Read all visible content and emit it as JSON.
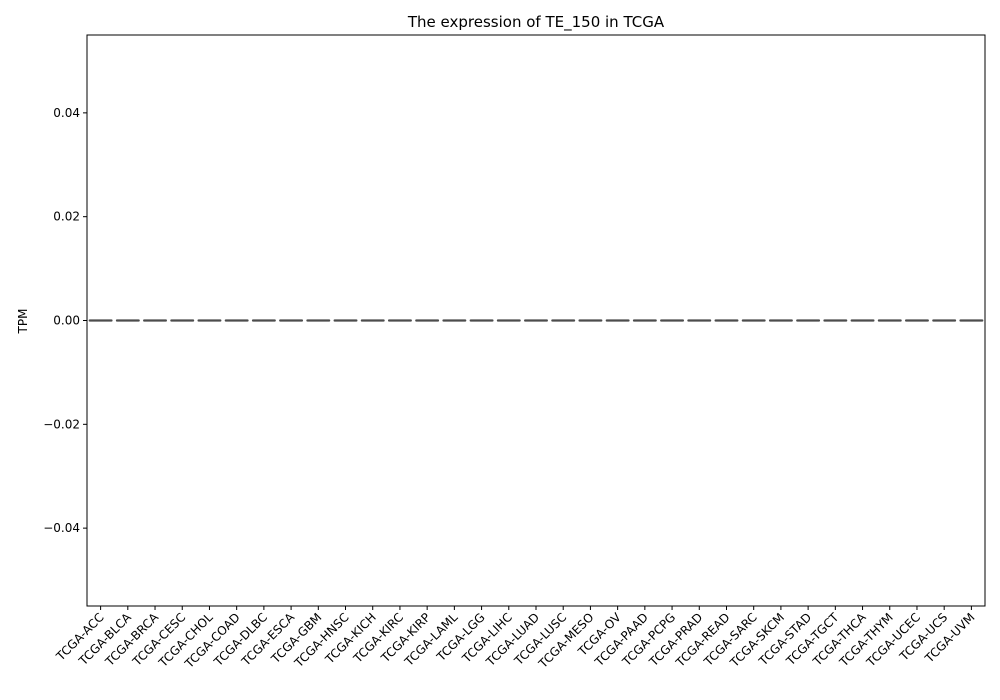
{
  "chart_data": {
    "type": "box",
    "title": "The expression of TE_150 in TCGA",
    "xlabel": "",
    "ylabel": "TPM",
    "ylim": [
      -0.055,
      0.055
    ],
    "yticks": [
      "0.04",
      "0.02",
      "0.00",
      "−0.02",
      "−0.04"
    ],
    "ytick_values": [
      0.04,
      0.02,
      0.0,
      -0.02,
      -0.04
    ],
    "grid": false,
    "legend": "none",
    "box_color": "#4c4c4c",
    "categories": [
      "TCGA-ACC",
      "TCGA-BLCA",
      "TCGA-BRCA",
      "TCGA-CESC",
      "TCGA-CHOL",
      "TCGA-COAD",
      "TCGA-DLBC",
      "TCGA-ESCA",
      "TCGA-GBM",
      "TCGA-HNSC",
      "TCGA-KICH",
      "TCGA-KIRC",
      "TCGA-KIRP",
      "TCGA-LAML",
      "TCGA-LGG",
      "TCGA-LIHC",
      "TCGA-LUAD",
      "TCGA-LUSC",
      "TCGA-MESO",
      "TCGA-OV",
      "TCGA-PAAD",
      "TCGA-PCPG",
      "TCGA-PRAD",
      "TCGA-READ",
      "TCGA-SARC",
      "TCGA-SKCM",
      "TCGA-STAD",
      "TCGA-TGCT",
      "TCGA-THCA",
      "TCGA-THYM",
      "TCGA-UCEC",
      "TCGA-UCS",
      "TCGA-UVM"
    ],
    "medians": [
      0,
      0,
      0,
      0,
      0,
      0,
      0,
      0,
      0,
      0,
      0,
      0,
      0,
      0,
      0,
      0,
      0,
      0,
      0,
      0,
      0,
      0,
      0,
      0,
      0,
      0,
      0,
      0,
      0,
      0,
      0,
      0,
      0
    ]
  }
}
